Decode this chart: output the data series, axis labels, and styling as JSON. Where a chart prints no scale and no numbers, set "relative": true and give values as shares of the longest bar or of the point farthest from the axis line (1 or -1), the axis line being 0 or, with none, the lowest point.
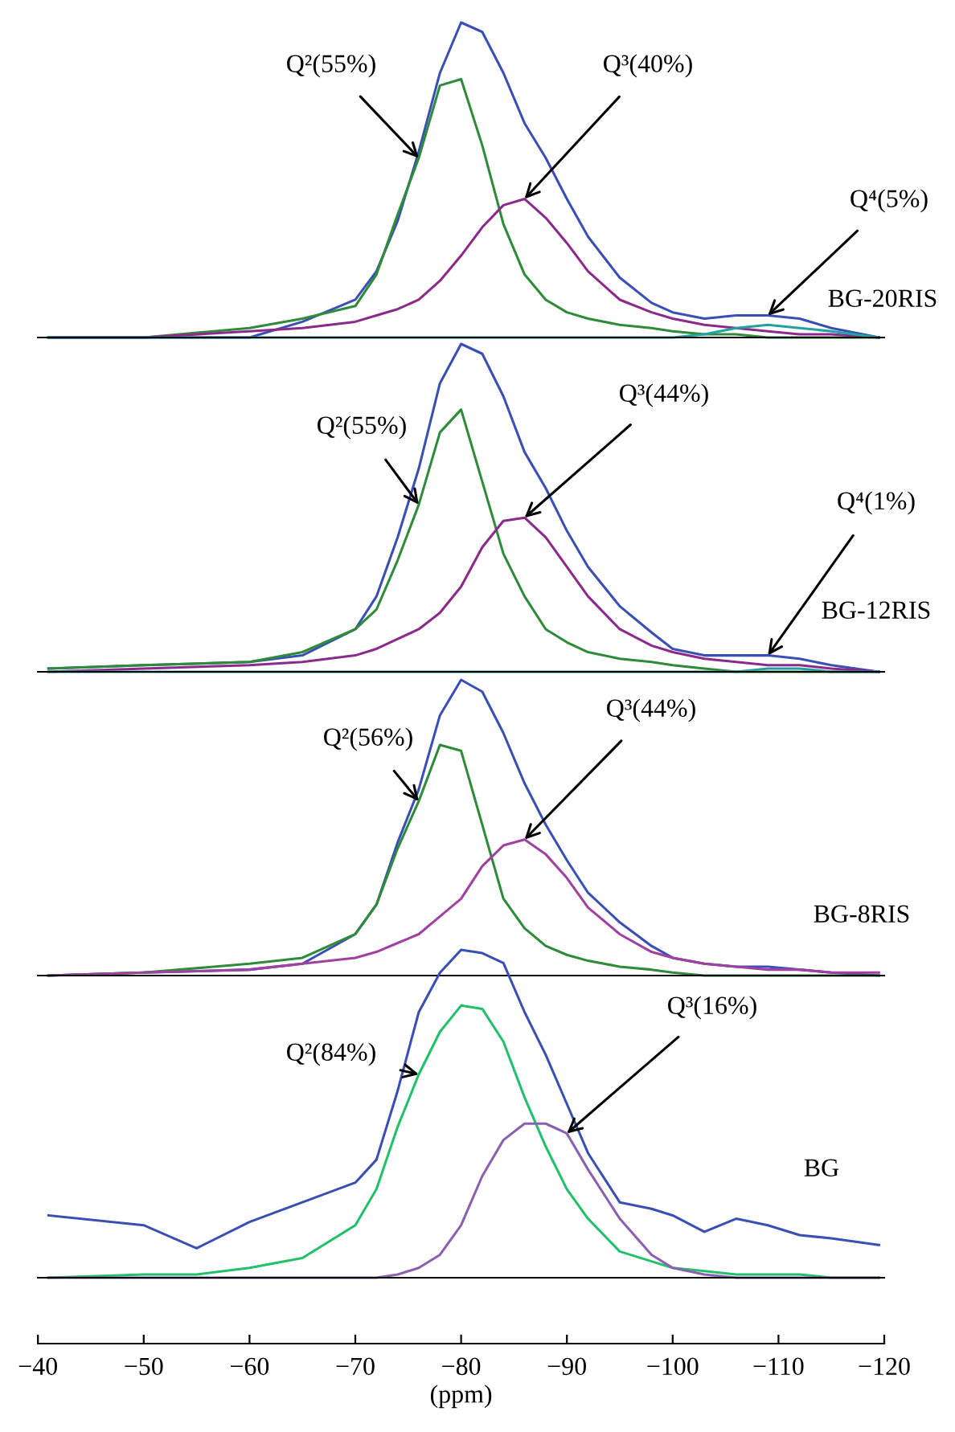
{
  "chart_data": [
    {
      "type": "line",
      "title": "BG-20RIS",
      "relative": true,
      "xlim": [
        -40,
        -120
      ],
      "tick_labels": false,
      "x": [
        -41,
        -50,
        -60,
        -65,
        -70,
        -72,
        -74,
        -76,
        -78,
        -80,
        -82,
        -84,
        -86,
        -88,
        -90,
        -92,
        -95,
        -98,
        -100,
        -103,
        -106,
        -109,
        -112,
        -115,
        -119.5
      ],
      "series": [
        {
          "color": "#3a4fb5",
          "values": [
            0,
            0,
            0,
            0.05,
            0.12,
            0.21,
            0.37,
            0.59,
            0.84,
            1,
            0.97,
            0.84,
            0.68,
            0.57,
            0.44,
            0.32,
            0.19,
            0.11,
            0.08,
            0.06,
            0.07,
            0.07,
            0.06,
            0.03,
            0
          ]
        },
        {
          "color": "#2e8b3a",
          "values": [
            0,
            0,
            0.03,
            0.06,
            0.1,
            0.2,
            0.39,
            0.57,
            0.8,
            0.82,
            0.61,
            0.36,
            0.2,
            0.12,
            0.08,
            0.06,
            0.04,
            0.03,
            0.02,
            0.01,
            0.01,
            0,
            0,
            0,
            0
          ]
        },
        {
          "color": "#8b2a8b",
          "values": [
            0,
            0,
            0.02,
            0.03,
            0.05,
            0.07,
            0.09,
            0.12,
            0.18,
            0.26,
            0.35,
            0.42,
            0.44,
            0.38,
            0.3,
            0.21,
            0.12,
            0.08,
            0.06,
            0.04,
            0.03,
            0.02,
            0.01,
            0.01,
            0
          ]
        },
        {
          "color": "#23a0a0",
          "values": [
            0,
            0,
            0,
            0,
            0,
            0,
            0,
            0,
            0,
            0,
            0,
            0,
            0,
            0,
            0,
            0,
            0,
            0,
            0,
            0.01,
            0.03,
            0.04,
            0.03,
            0.02,
            0
          ]
        }
      ],
      "annotations": [
        {
          "text": "Q²(55%)",
          "x": -76,
          "y": 0.57
        },
        {
          "text": "Q³(40%)",
          "x": -86,
          "y": 0.44
        },
        {
          "text": "Q⁴(5%)",
          "x": -109,
          "y": 0.07
        }
      ]
    },
    {
      "type": "line",
      "title": "BG-12RIS",
      "relative": true,
      "xlim": [
        -40,
        -120
      ],
      "tick_labels": false,
      "x": [
        -41,
        -50,
        -60,
        -65,
        -70,
        -72,
        -74,
        -76,
        -78,
        -80,
        -82,
        -84,
        -86,
        -88,
        -90,
        -92,
        -95,
        -98,
        -100,
        -103,
        -106,
        -109,
        -112,
        -115,
        -119.5
      ],
      "series": [
        {
          "color": "#3a4fb5",
          "values": [
            0.01,
            0.02,
            0.03,
            0.05,
            0.13,
            0.23,
            0.41,
            0.62,
            0.88,
            1,
            0.97,
            0.84,
            0.67,
            0.56,
            0.43,
            0.32,
            0.2,
            0.12,
            0.07,
            0.05,
            0.05,
            0.05,
            0.04,
            0.02,
            0
          ]
        },
        {
          "color": "#2e8b3a",
          "values": [
            0.01,
            0.02,
            0.03,
            0.06,
            0.13,
            0.19,
            0.34,
            0.51,
            0.73,
            0.8,
            0.58,
            0.36,
            0.23,
            0.13,
            0.09,
            0.06,
            0.04,
            0.03,
            0.02,
            0.01,
            0,
            0,
            0,
            0,
            0
          ]
        },
        {
          "color": "#8b2a8b",
          "values": [
            0,
            0.01,
            0.02,
            0.03,
            0.05,
            0.07,
            0.1,
            0.13,
            0.18,
            0.26,
            0.38,
            0.46,
            0.47,
            0.41,
            0.32,
            0.23,
            0.13,
            0.08,
            0.06,
            0.04,
            0.03,
            0.02,
            0.02,
            0.01,
            0
          ]
        },
        {
          "color": "#23a0a0",
          "values": [
            0,
            0,
            0,
            0,
            0,
            0,
            0,
            0,
            0,
            0,
            0,
            0,
            0,
            0,
            0,
            0,
            0,
            0,
            0,
            0,
            0,
            0.01,
            0.01,
            0,
            0
          ]
        }
      ],
      "annotations": [
        {
          "text": "Q²(55%)",
          "x": -76,
          "y": 0.51
        },
        {
          "text": "Q³(44%)",
          "x": -86,
          "y": 0.47
        },
        {
          "text": "Q⁴(1%)",
          "x": -109,
          "y": 0.05
        }
      ]
    },
    {
      "type": "line",
      "title": "BG-8RIS",
      "relative": true,
      "xlim": [
        -40,
        -120
      ],
      "tick_labels": false,
      "x": [
        -41,
        -50,
        -60,
        -65,
        -70,
        -72,
        -74,
        -76,
        -78,
        -80,
        -82,
        -84,
        -86,
        -88,
        -90,
        -92,
        -95,
        -98,
        -100,
        -103,
        -106,
        -109,
        -112,
        -115,
        -119.5
      ],
      "series": [
        {
          "color": "#3a4fb5",
          "values": [
            0,
            0.01,
            0.02,
            0.04,
            0.14,
            0.24,
            0.45,
            0.63,
            0.88,
            1,
            0.96,
            0.82,
            0.65,
            0.51,
            0.39,
            0.28,
            0.18,
            0.1,
            0.06,
            0.04,
            0.03,
            0.03,
            0.02,
            0.01,
            0
          ]
        },
        {
          "color": "#2e8b3a",
          "values": [
            0,
            0.01,
            0.04,
            0.06,
            0.14,
            0.24,
            0.43,
            0.59,
            0.78,
            0.76,
            0.51,
            0.26,
            0.16,
            0.1,
            0.07,
            0.05,
            0.03,
            0.02,
            0.01,
            0,
            0,
            0,
            0,
            0,
            0
          ]
        },
        {
          "color": "#a040a0",
          "values": [
            0,
            0.01,
            0.02,
            0.04,
            0.06,
            0.08,
            0.11,
            0.14,
            0.2,
            0.26,
            0.37,
            0.44,
            0.46,
            0.41,
            0.33,
            0.23,
            0.14,
            0.08,
            0.06,
            0.04,
            0.03,
            0.02,
            0.02,
            0.01,
            0.01
          ]
        }
      ],
      "annotations": [
        {
          "text": "Q²(56%)",
          "x": -76,
          "y": 0.59
        },
        {
          "text": "Q³(44%)",
          "x": -86,
          "y": 0.46
        }
      ]
    },
    {
      "type": "line",
      "title": "BG",
      "relative": true,
      "xlim": [
        -40,
        -120
      ],
      "tick_labels": "x",
      "xlabel": "(ppm)",
      "xticks": [
        {
          "value": -40,
          "label": "−40"
        },
        {
          "value": -50,
          "label": "−50"
        },
        {
          "value": -60,
          "label": "−60"
        },
        {
          "value": -70,
          "label": "−70"
        },
        {
          "value": -80,
          "label": "−80"
        },
        {
          "value": -90,
          "label": "−90"
        },
        {
          "value": -100,
          "label": "−100"
        },
        {
          "value": -110,
          "label": "−110"
        },
        {
          "value": -120,
          "label": "−120"
        }
      ],
      "x": [
        -41,
        -50,
        -55,
        -60,
        -65,
        -70,
        -72,
        -74,
        -76,
        -78,
        -80,
        -82,
        -84,
        -86,
        -88,
        -90,
        -92,
        -95,
        -98,
        -100,
        -103,
        -106,
        -109,
        -112,
        -115,
        -119.5
      ],
      "series": [
        {
          "color": "#3a4fb5",
          "values": [
            0.19,
            0.16,
            0.09,
            0.17,
            0.23,
            0.29,
            0.36,
            0.57,
            0.81,
            0.93,
            1,
            0.99,
            0.96,
            0.81,
            0.68,
            0.53,
            0.38,
            0.23,
            0.21,
            0.19,
            0.14,
            0.18,
            0.16,
            0.13,
            0.12,
            0.1
          ]
        },
        {
          "color": "#22c06a",
          "values": [
            0,
            0.01,
            0.01,
            0.03,
            0.06,
            0.16,
            0.27,
            0.46,
            0.62,
            0.75,
            0.83,
            0.82,
            0.72,
            0.55,
            0.4,
            0.27,
            0.18,
            0.08,
            0.05,
            0.03,
            0.02,
            0.01,
            0.01,
            0.01,
            0,
            0
          ]
        },
        {
          "color": "#8a60b0",
          "values": [
            0,
            0,
            0,
            0,
            0,
            0,
            0,
            0.01,
            0.03,
            0.07,
            0.16,
            0.31,
            0.42,
            0.47,
            0.47,
            0.44,
            0.33,
            0.18,
            0.07,
            0.03,
            0.01,
            0,
            0,
            0,
            0,
            0
          ]
        }
      ],
      "annotations": [
        {
          "text": "Q²(84%)",
          "x": -76,
          "y": 0.62
        },
        {
          "text": "Q³(16%)",
          "x": -90,
          "y": 0.44
        }
      ]
    }
  ]
}
